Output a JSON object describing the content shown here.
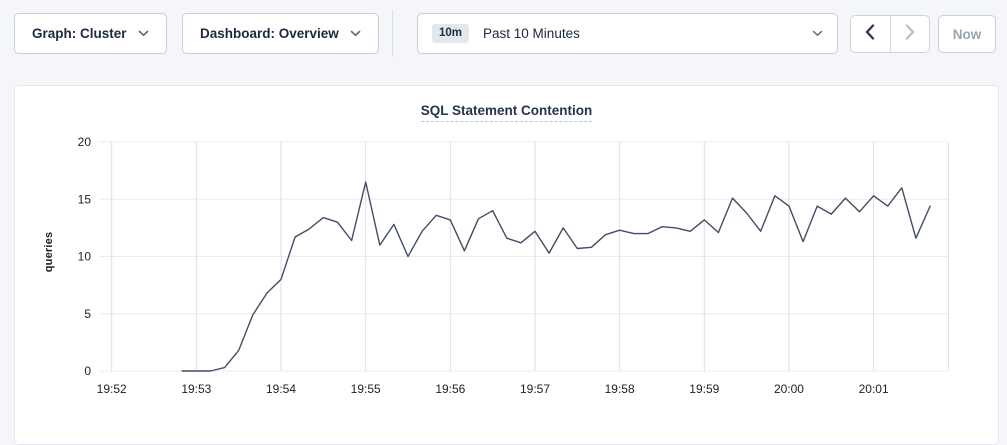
{
  "toolbar": {
    "graph_dropdown": {
      "label": "Graph: Cluster"
    },
    "dashboard_dropdown": {
      "label": "Dashboard: Overview"
    },
    "time_picker": {
      "badge": "10m",
      "label": "Past 10 Minutes"
    },
    "prev_button": {
      "icon": "chevron-left",
      "enabled": true
    },
    "next_button": {
      "icon": "chevron-right",
      "enabled": false
    },
    "now_button": {
      "label": "Now",
      "enabled": false
    }
  },
  "chart_data": {
    "type": "line",
    "title": "SQL Statement Contention",
    "ylabel": "queries",
    "ylim": [
      0,
      20
    ],
    "yticks": [
      0,
      5,
      10,
      15,
      20
    ],
    "xtick_labels": [
      "19:52",
      "19:53",
      "19:54",
      "19:55",
      "19:56",
      "19:57",
      "19:58",
      "19:59",
      "20:00",
      "20:01"
    ],
    "xtick_seconds": [
      0,
      60,
      120,
      180,
      240,
      300,
      360,
      420,
      480,
      540
    ],
    "xlim_seconds": [
      -9,
      593
    ],
    "grid": true,
    "legend": "none",
    "series": [
      {
        "name": "SQL Statement Contention",
        "unit": "queries",
        "points_time_value": [
          [
            50,
            0
          ],
          [
            60,
            0
          ],
          [
            70,
            0
          ],
          [
            80,
            0.3
          ],
          [
            90,
            1.8
          ],
          [
            100,
            4.9
          ],
          [
            110,
            6.8
          ],
          [
            120,
            8
          ],
          [
            130,
            11.7
          ],
          [
            140,
            12.4
          ],
          [
            150,
            13.4
          ],
          [
            160,
            13
          ],
          [
            170,
            11.4
          ],
          [
            180,
            16.5
          ],
          [
            190,
            11
          ],
          [
            200,
            12.8
          ],
          [
            210,
            10
          ],
          [
            220,
            12.2
          ],
          [
            230,
            13.6
          ],
          [
            240,
            13.2
          ],
          [
            250,
            10.5
          ],
          [
            260,
            13.3
          ],
          [
            270,
            14
          ],
          [
            280,
            11.6
          ],
          [
            290,
            11.2
          ],
          [
            300,
            12.2
          ],
          [
            310,
            10.3
          ],
          [
            320,
            12.5
          ],
          [
            330,
            10.7
          ],
          [
            340,
            10.8
          ],
          [
            350,
            11.9
          ],
          [
            360,
            12.3
          ],
          [
            370,
            12
          ],
          [
            380,
            12
          ],
          [
            390,
            12.6
          ],
          [
            400,
            12.5
          ],
          [
            410,
            12.2
          ],
          [
            420,
            13.2
          ],
          [
            430,
            12.1
          ],
          [
            440,
            15.1
          ],
          [
            450,
            13.8
          ],
          [
            460,
            12.2
          ],
          [
            470,
            15.3
          ],
          [
            480,
            14.4
          ],
          [
            490,
            11.3
          ],
          [
            500,
            14.4
          ],
          [
            510,
            13.7
          ],
          [
            520,
            15.1
          ],
          [
            530,
            13.9
          ],
          [
            540,
            15.3
          ],
          [
            550,
            14.4
          ],
          [
            560,
            16
          ],
          [
            570,
            11.6
          ],
          [
            580,
            14.4
          ]
        ]
      }
    ],
    "colors": {
      "line": "#414d66",
      "grid_horizontal": "#ececef",
      "grid_vertical": "#dcdfe4",
      "tick_text": "#1f1f23",
      "title": "#26334d"
    }
  }
}
